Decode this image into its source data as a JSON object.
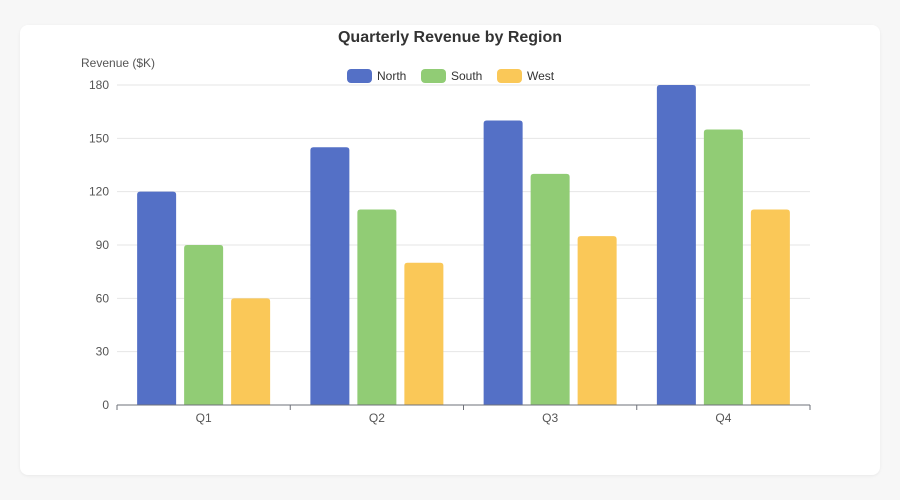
{
  "chart_data": {
    "type": "bar",
    "title": "Quarterly Revenue by Region",
    "ylabel": "Revenue ($K)",
    "xlabel": "",
    "categories": [
      "Q1",
      "Q2",
      "Q3",
      "Q4"
    ],
    "ylim": [
      0,
      180
    ],
    "yticks": [
      0,
      30,
      60,
      90,
      120,
      150,
      180
    ],
    "grid": true,
    "legend_position": "top-center",
    "series": [
      {
        "name": "North",
        "color": "#5470c6",
        "values": [
          120,
          145,
          160,
          180
        ]
      },
      {
        "name": "South",
        "color": "#91cc75",
        "values": [
          90,
          110,
          130,
          155
        ]
      },
      {
        "name": "West",
        "color": "#fac858",
        "values": [
          60,
          80,
          95,
          110
        ]
      }
    ]
  }
}
